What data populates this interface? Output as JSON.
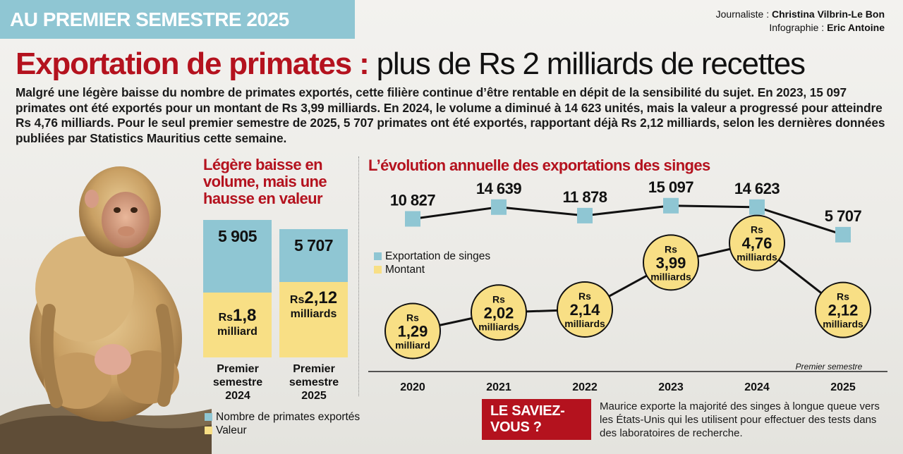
{
  "banner": "AU PREMIER SEMESTRE 2025",
  "credits": {
    "journalist_label": "Journaliste :",
    "journalist": "Christina Vilbrin-Le Bon",
    "infographics_label": "Infographie :",
    "infographics": "Eric Antoine"
  },
  "headline": {
    "highlight": "Exportation de primates :",
    "rest": "plus de Rs 2 milliards de recettes"
  },
  "intro": "Malgré une légère baisse du nombre de primates exportés, cette filière continue d’être rentable en dépit de la sensibilité du sujet. En 2023, 15 097 primates ont été exportés pour un montant de Rs 3,99 milliards. En 2024, le volume a diminué à 14 623 unités, mais la valeur a progressé pour atteindre Rs 4,76 milliards. Pour le seul premier semestre de 2025, 5 707 primates ont été exportés, rapportant déjà Rs 2,12 milliards, selon les dernières données publiées par Statistics Mauritius cette semaine.",
  "colors": {
    "accent": "#b4121e",
    "blue": "#8fc6d3",
    "yellow": "#f8df85",
    "circle_border": "#111111"
  },
  "chart_data": [
    {
      "type": "bar",
      "title": "Légère baisse en volume, mais une hausse en valeur",
      "categories": [
        "Premier semestre 2024",
        "Premier semestre 2025"
      ],
      "series": [
        {
          "name": "Nombre de primates exportés",
          "values": [
            5905,
            5707
          ],
          "labels": [
            "5 905",
            "5 707"
          ]
        },
        {
          "name": "Valeur",
          "values": [
            1.8,
            2.12
          ],
          "labels": [
            {
              "rs": "Rs",
              "num": "1,8",
              "unit": "milliard"
            },
            {
              "rs": "Rs",
              "num": "2,12",
              "unit": "milliards"
            }
          ]
        }
      ]
    },
    {
      "type": "line",
      "title": "L’évolution annuelle des exportations des singes",
      "x": [
        "2020",
        "2021",
        "2022",
        "2023",
        "2024",
        "2025"
      ],
      "x_note": "Premier semestre",
      "series": [
        {
          "name": "Exportation de singes",
          "values": [
            10827,
            14639,
            11878,
            15097,
            14623,
            5707
          ],
          "labels": [
            "10 827",
            "14 639",
            "11 878",
            "15 097",
            "14 623",
            "5 707"
          ]
        },
        {
          "name": "Montant",
          "values": [
            1.29,
            2.02,
            2.14,
            3.99,
            4.76,
            2.12
          ],
          "labels": [
            {
              "rs": "Rs",
              "num": "1,29",
              "unit": "milliard"
            },
            {
              "rs": "Rs",
              "num": "2,02",
              "unit": "milliards"
            },
            {
              "rs": "Rs",
              "num": "2,14",
              "unit": "milliards"
            },
            {
              "rs": "Rs",
              "num": "3,99",
              "unit": "milliards"
            },
            {
              "rs": "Rs",
              "num": "4,76",
              "unit": "milliards"
            },
            {
              "rs": "Rs",
              "num": "2,12",
              "unit": "milliards"
            }
          ]
        }
      ]
    }
  ],
  "saviez": {
    "title": "LE SAVIEZ-VOUS ?",
    "text": "Maurice exporte la majorité des singes à longue queue vers les États-Unis qui les utilisent pour effectuer des tests dans des laboratoires de recherche."
  }
}
